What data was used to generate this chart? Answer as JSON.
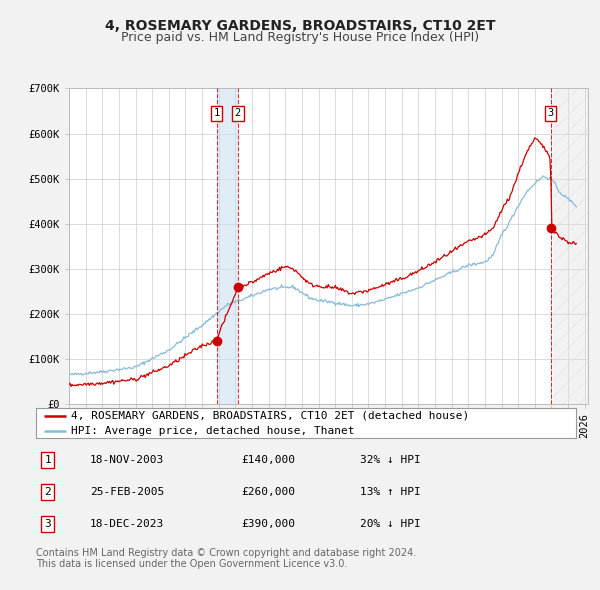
{
  "title": "4, ROSEMARY GARDENS, BROADSTAIRS, CT10 2ET",
  "subtitle": "Price paid vs. HM Land Registry's House Price Index (HPI)",
  "ylim": [
    0,
    700000
  ],
  "yticks": [
    0,
    100000,
    200000,
    300000,
    400000,
    500000,
    600000,
    700000
  ],
  "ytick_labels": [
    "£0",
    "£100K",
    "£200K",
    "£300K",
    "£400K",
    "£500K",
    "£600K",
    "£700K"
  ],
  "xlim_start": 1995.0,
  "xlim_end": 2026.2,
  "background_color": "#f2f2f2",
  "plot_bg_color": "#ffffff",
  "grid_color": "#cccccc",
  "red_line_color": "#cc0000",
  "blue_line_color": "#88bbd8",
  "sale_dates": [
    2003.88,
    2005.15,
    2023.96
  ],
  "sale_prices": [
    140000,
    260000,
    390000
  ],
  "sale_labels": [
    "1",
    "2",
    "3"
  ],
  "future_shade_start": 2024.08,
  "legend_line1": "4, ROSEMARY GARDENS, BROADSTAIRS, CT10 2ET (detached house)",
  "legend_line2": "HPI: Average price, detached house, Thanet",
  "table_rows": [
    [
      "1",
      "18-NOV-2003",
      "£140,000",
      "32% ↓ HPI"
    ],
    [
      "2",
      "25-FEB-2005",
      "£260,000",
      "13% ↑ HPI"
    ],
    [
      "3",
      "18-DEC-2023",
      "£390,000",
      "20% ↓ HPI"
    ]
  ],
  "footnote": "Contains HM Land Registry data © Crown copyright and database right 2024.\nThis data is licensed under the Open Government Licence v3.0.",
  "title_fontsize": 10,
  "subtitle_fontsize": 9,
  "tick_fontsize": 7.5,
  "legend_fontsize": 8,
  "table_fontsize": 8,
  "footnote_fontsize": 7
}
